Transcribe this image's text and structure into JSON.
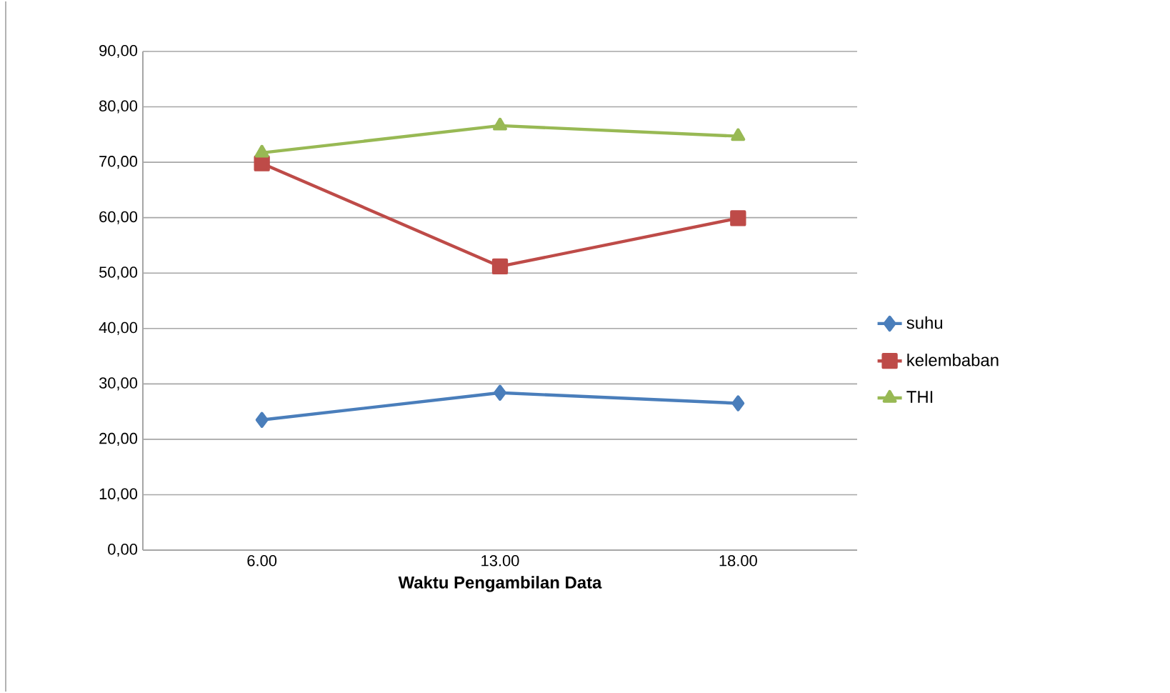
{
  "chart_data": {
    "type": "line",
    "xlabel": "Waktu Pengambilan Data",
    "categories": [
      "6.00",
      "13.00",
      "18.00"
    ],
    "series": [
      {
        "name": "suhu",
        "color": "#4a7ebb",
        "marker": "diamond",
        "values": [
          23.5,
          28.4,
          26.5
        ]
      },
      {
        "name": "kelembaban",
        "color": "#be4b48",
        "marker": "square",
        "values": [
          69.8,
          51.2,
          59.9
        ]
      },
      {
        "name": "THI",
        "color": "#98b954",
        "marker": "triangle",
        "values": [
          71.7,
          76.6,
          74.7
        ]
      }
    ],
    "ylim": [
      0,
      90
    ],
    "yticks": [
      {
        "value": 0,
        "label": "0,00"
      },
      {
        "value": 10,
        "label": "10,00"
      },
      {
        "value": 20,
        "label": "20,00"
      },
      {
        "value": 30,
        "label": "30,00"
      },
      {
        "value": 40,
        "label": "40,00"
      },
      {
        "value": 50,
        "label": "50,00"
      },
      {
        "value": 60,
        "label": "60,00"
      },
      {
        "value": 70,
        "label": "70,00"
      },
      {
        "value": 80,
        "label": "80,00"
      },
      {
        "value": 90,
        "label": "90,00"
      }
    ],
    "grid": "y",
    "legend": "right"
  }
}
